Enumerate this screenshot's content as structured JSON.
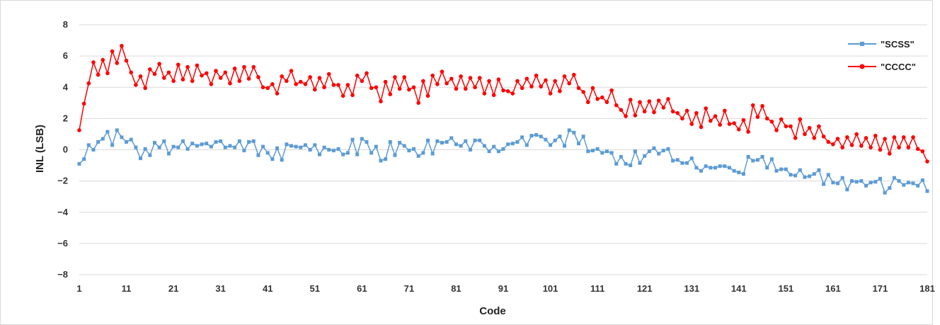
{
  "chart_data": {
    "type": "line",
    "xlabel": "Code",
    "ylabel": "INL (LSB)",
    "xlim": [
      1,
      181
    ],
    "ylim": [
      -8,
      8
    ],
    "x_ticks": [
      "1",
      "11",
      "21",
      "31",
      "41",
      "51",
      "61",
      "71",
      "81",
      "91",
      "101",
      "111",
      "121",
      "131",
      "141",
      "151",
      "161",
      "171",
      "181"
    ],
    "y_ticks": [
      "8",
      "6",
      "4",
      "2",
      "0",
      "−2",
      "−4",
      "−6",
      "−8"
    ],
    "grid": true,
    "legend_position": "top-right",
    "series": [
      {
        "name": "\"SCSS\"",
        "color": "#5b9bd5",
        "marker": "square",
        "values": [
          -0.9,
          -0.6,
          0.3,
          0.0,
          0.5,
          0.7,
          1.15,
          0.3,
          1.25,
          0.8,
          0.5,
          0.65,
          0.15,
          -0.55,
          0.05,
          -0.35,
          0.45,
          0.15,
          0.55,
          -0.25,
          0.2,
          0.15,
          0.55,
          0.05,
          0.4,
          0.25,
          0.35,
          0.4,
          0.2,
          0.5,
          0.55,
          0.15,
          0.25,
          0.15,
          0.55,
          -0.05,
          0.5,
          0.55,
          -0.35,
          0.2,
          -0.2,
          -0.6,
          0.1,
          -0.65,
          0.35,
          0.25,
          0.2,
          0.15,
          0.3,
          0.0,
          0.3,
          -0.3,
          0.15,
          0.0,
          -0.05,
          0.05,
          -0.3,
          -0.2,
          0.65,
          -0.3,
          0.7,
          0.5,
          -0.2,
          0.2,
          -0.7,
          -0.6,
          0.5,
          -0.35,
          0.45,
          0.25,
          -0.05,
          0.05,
          -0.4,
          -0.2,
          0.6,
          -0.25,
          0.55,
          0.45,
          0.5,
          0.75,
          0.35,
          0.25,
          0.55,
          0.0,
          0.6,
          0.6,
          0.25,
          -0.1,
          0.2,
          -0.1,
          0.05,
          0.35,
          0.4,
          0.5,
          0.8,
          0.3,
          0.9,
          0.95,
          0.85,
          0.65,
          0.3,
          0.6,
          0.85,
          0.25,
          1.25,
          1.1,
          0.4,
          0.85,
          -0.1,
          -0.05,
          0.05,
          -0.2,
          -0.1,
          -0.2,
          -0.9,
          -0.45,
          -0.9,
          -1.0,
          -0.1,
          -0.85,
          -0.4,
          -0.1,
          0.1,
          -0.25,
          -0.05,
          0.05,
          -0.7,
          -0.65,
          -0.85,
          -0.85,
          -0.55,
          -1.15,
          -1.35,
          -1.05,
          -1.15,
          -1.15,
          -1.05,
          -1.05,
          -1.15,
          -1.35,
          -1.45,
          -1.55,
          -0.45,
          -0.7,
          -0.65,
          -0.45,
          -1.15,
          -0.6,
          -1.35,
          -1.25,
          -1.25,
          -1.6,
          -1.65,
          -1.3,
          -1.75,
          -1.7,
          -1.55,
          -1.3,
          -2.2,
          -1.6,
          -2.1,
          -2.15,
          -1.8,
          -2.55,
          -2.0,
          -2.05,
          -2.0,
          -2.3,
          -2.1,
          -2.05,
          -1.85,
          -2.75,
          -2.45,
          -1.8,
          -2.0,
          -2.25,
          -2.1,
          -2.15,
          -2.3,
          -1.95,
          -2.65
        ]
      },
      {
        "name": "\"CCCC\"",
        "color": "#ff0000",
        "marker": "circle",
        "values": [
          1.25,
          2.95,
          4.25,
          5.6,
          4.8,
          5.75,
          4.9,
          6.3,
          5.55,
          6.65,
          5.7,
          4.95,
          4.15,
          4.7,
          3.95,
          5.15,
          4.85,
          5.5,
          4.6,
          4.95,
          4.4,
          5.45,
          4.5,
          5.3,
          4.4,
          5.4,
          4.75,
          4.9,
          4.2,
          5.05,
          4.6,
          4.95,
          4.25,
          5.2,
          4.4,
          5.3,
          4.55,
          5.3,
          4.65,
          4.0,
          3.95,
          4.2,
          3.6,
          4.7,
          4.4,
          5.05,
          4.2,
          4.35,
          4.2,
          4.65,
          3.85,
          4.6,
          4.0,
          4.85,
          4.15,
          4.15,
          3.45,
          4.15,
          3.5,
          4.75,
          4.4,
          4.9,
          3.95,
          4.0,
          3.1,
          4.35,
          3.55,
          4.65,
          3.9,
          4.65,
          3.85,
          4.0,
          3.0,
          4.4,
          3.45,
          4.75,
          4.2,
          5.0,
          4.25,
          4.55,
          3.9,
          4.7,
          3.9,
          4.6,
          4.0,
          4.6,
          3.6,
          4.4,
          3.5,
          4.5,
          3.8,
          3.75,
          3.6,
          4.4,
          3.95,
          4.55,
          4.05,
          4.75,
          4.05,
          4.45,
          3.6,
          4.4,
          3.75,
          4.7,
          4.25,
          4.8,
          3.95,
          3.7,
          3.05,
          3.95,
          3.25,
          3.35,
          3.05,
          3.8,
          2.85,
          2.55,
          2.15,
          3.2,
          2.2,
          3.05,
          2.45,
          3.1,
          2.4,
          3.15,
          2.7,
          3.25,
          2.45,
          2.35,
          2.0,
          2.5,
          1.65,
          2.35,
          1.45,
          2.65,
          1.85,
          2.15,
          1.6,
          2.5,
          1.65,
          1.7,
          1.3,
          1.9,
          1.15,
          2.85,
          2.1,
          2.8,
          2.0,
          1.8,
          1.25,
          1.95,
          1.5,
          1.5,
          0.75,
          1.95,
          1.0,
          1.4,
          0.75,
          1.5,
          0.85,
          0.5,
          0.35,
          0.7,
          0.15,
          0.8,
          0.3,
          1.0,
          0.25,
          0.75,
          0.15,
          0.9,
          0.0,
          0.7,
          -0.25,
          0.8,
          0.15,
          0.8,
          0.15,
          0.8,
          0.05,
          -0.1,
          -0.75
        ]
      }
    ]
  }
}
